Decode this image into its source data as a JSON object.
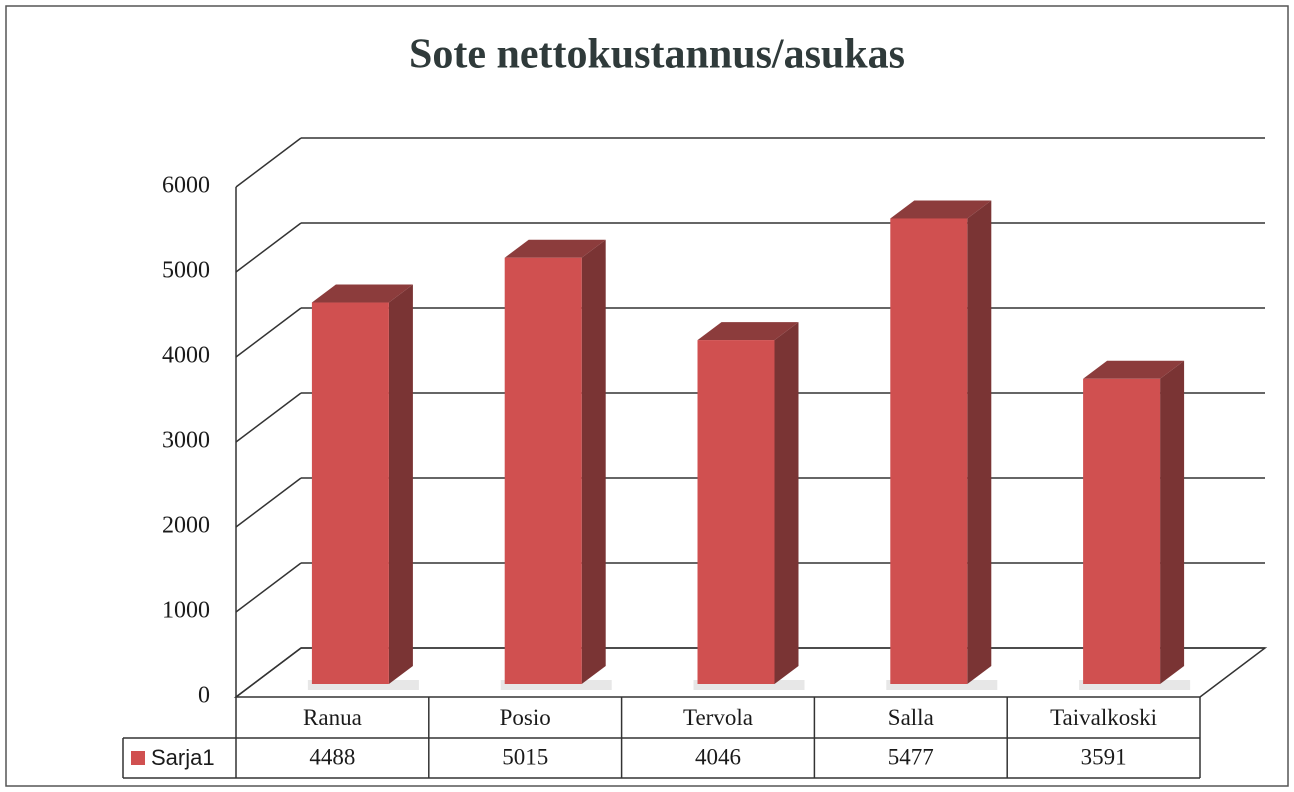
{
  "chart_data": {
    "type": "bar3d",
    "title": "Sote nettokustannus/asukas",
    "categories": [
      "Ranua",
      "Posio",
      "Tervola",
      "Salla",
      "Taivalkoski"
    ],
    "series": [
      {
        "name": "Sarja1",
        "color": "#d05050",
        "values": [
          4488,
          5015,
          4046,
          5477,
          3591
        ]
      }
    ],
    "ylim": [
      0,
      6000
    ],
    "yticks": [
      0,
      1000,
      2000,
      3000,
      4000,
      5000,
      6000
    ],
    "grid": true,
    "data_table": true
  }
}
